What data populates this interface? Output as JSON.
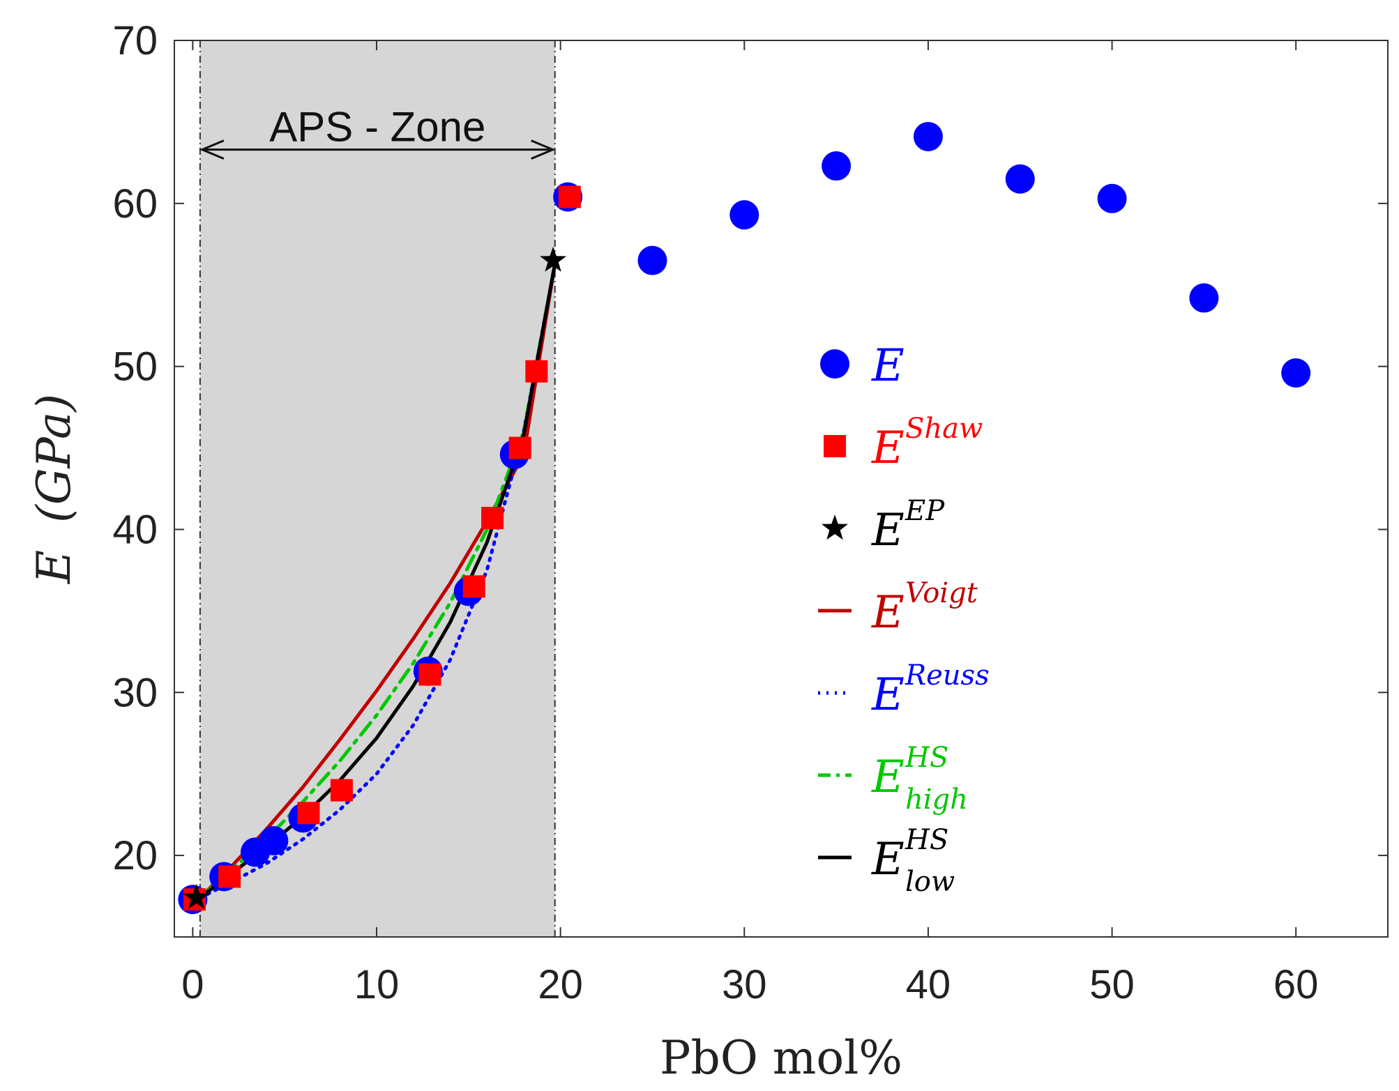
{
  "chart_data": {
    "type": "scatter",
    "xlabel": "PbO mol%",
    "ylabel": {
      "main": "E",
      "unit": "(GPa)"
    },
    "xlim": [
      -1,
      65
    ],
    "ylim": [
      15,
      70
    ],
    "xticks": [
      0,
      10,
      20,
      30,
      40,
      50,
      60
    ],
    "yticks": [
      20,
      30,
      40,
      50,
      60,
      70
    ],
    "grid": false,
    "legend_position": "center-right",
    "annotation": {
      "text": "APS - Zone",
      "x_range": [
        0.4,
        19.7
      ],
      "y": 63.3
    },
    "shaded_region": {
      "x_range": [
        0.4,
        19.7
      ],
      "color": "#d6d6d6"
    },
    "colors": {
      "blue": "#0000ff",
      "red": "#ff0000",
      "darkred": "#c00000",
      "green": "#00c800",
      "black": "#000000"
    },
    "legend": [
      {
        "base": "E",
        "sup": "",
        "sub": "",
        "color": "#0000ff",
        "marker": "circle"
      },
      {
        "base": "E",
        "sup": "Shaw",
        "sub": "",
        "color": "#ff0000",
        "marker": "square"
      },
      {
        "base": "E",
        "sup": "EP",
        "sub": "",
        "color": "#000000",
        "marker": "star"
      },
      {
        "base": "E",
        "sup": "Voigt",
        "sub": "",
        "color": "#c00000",
        "marker": "solid"
      },
      {
        "base": "E",
        "sup": "Reuss",
        "sub": "",
        "color": "#0000ff",
        "marker": "dotted"
      },
      {
        "base": "E",
        "sup": "HS",
        "sub": "high",
        "color": "#00c800",
        "marker": "dashdot"
      },
      {
        "base": "E",
        "sup": "HS",
        "sub": "low",
        "color": "#000000",
        "marker": "solid"
      }
    ],
    "series": [
      {
        "name": "E",
        "kind": "circle",
        "color": "#0000ff",
        "points": [
          [
            0,
            17.3
          ],
          [
            1.7,
            18.7
          ],
          [
            3.4,
            20.2
          ],
          [
            4.4,
            20.9
          ],
          [
            6,
            22.3
          ],
          [
            12.8,
            31.3
          ],
          [
            15,
            36.2
          ],
          [
            17.5,
            44.6
          ],
          [
            20.4,
            60.4
          ],
          [
            25,
            56.5
          ],
          [
            30,
            59.3
          ],
          [
            35,
            62.3
          ],
          [
            40,
            64.1
          ],
          [
            45,
            61.5
          ],
          [
            50,
            60.3
          ],
          [
            55,
            54.2
          ],
          [
            60,
            49.6
          ]
        ]
      },
      {
        "name": "E^Shaw",
        "kind": "square",
        "color": "#ff0000",
        "points": [
          [
            0.1,
            17.3
          ],
          [
            2,
            18.7
          ],
          [
            6.3,
            22.6
          ],
          [
            8.1,
            24
          ],
          [
            12.9,
            31.1
          ],
          [
            15.3,
            36.5
          ],
          [
            16.3,
            40.7
          ],
          [
            17.8,
            45
          ],
          [
            18.7,
            49.7
          ],
          [
            20.5,
            60.4
          ]
        ]
      },
      {
        "name": "E^EP",
        "kind": "star",
        "color": "#000000",
        "points": [
          [
            0.2,
            17.4
          ],
          [
            19.6,
            56.5
          ]
        ]
      },
      {
        "name": "E^Voigt",
        "kind": "line",
        "style": "solid",
        "color": "#c00000",
        "points": [
          [
            0.4,
            17.4
          ],
          [
            2,
            19.2
          ],
          [
            4,
            21.6
          ],
          [
            6,
            24.2
          ],
          [
            8,
            27.1
          ],
          [
            10,
            30.1
          ],
          [
            12,
            33.3
          ],
          [
            14,
            36.7
          ],
          [
            16,
            40.5
          ],
          [
            18,
            44.6
          ],
          [
            19.7,
            56.3
          ]
        ]
      },
      {
        "name": "E^Reuss",
        "kind": "line",
        "style": "dotted",
        "color": "#0000ff",
        "points": [
          [
            0.4,
            17.4
          ],
          [
            2,
            18.3
          ],
          [
            4,
            19.5
          ],
          [
            6,
            21
          ],
          [
            8,
            22.8
          ],
          [
            10,
            25
          ],
          [
            12,
            28
          ],
          [
            14,
            32
          ],
          [
            16,
            37.5
          ],
          [
            18,
            46
          ],
          [
            19.7,
            56.3
          ]
        ]
      },
      {
        "name": "E^HS_high",
        "kind": "line",
        "style": "dashdot",
        "color": "#00c800",
        "points": [
          [
            0.4,
            17.4
          ],
          [
            2,
            19
          ],
          [
            4,
            21
          ],
          [
            6,
            23.3
          ],
          [
            8,
            25.8
          ],
          [
            10,
            28.6
          ],
          [
            12,
            31.8
          ],
          [
            14,
            35.5
          ],
          [
            16,
            40
          ],
          [
            18,
            46
          ],
          [
            19.7,
            56.3
          ]
        ]
      },
      {
        "name": "E^HS_low",
        "kind": "line",
        "style": "solid",
        "color": "#000000",
        "points": [
          [
            0.4,
            17.4
          ],
          [
            2,
            18.8
          ],
          [
            4,
            20.5
          ],
          [
            6,
            22.4
          ],
          [
            8,
            24.6
          ],
          [
            10,
            27.2
          ],
          [
            12,
            30.4
          ],
          [
            14,
            34.3
          ],
          [
            16,
            39.2
          ],
          [
            18,
            45.8
          ],
          [
            19.7,
            56.3
          ]
        ]
      }
    ]
  }
}
